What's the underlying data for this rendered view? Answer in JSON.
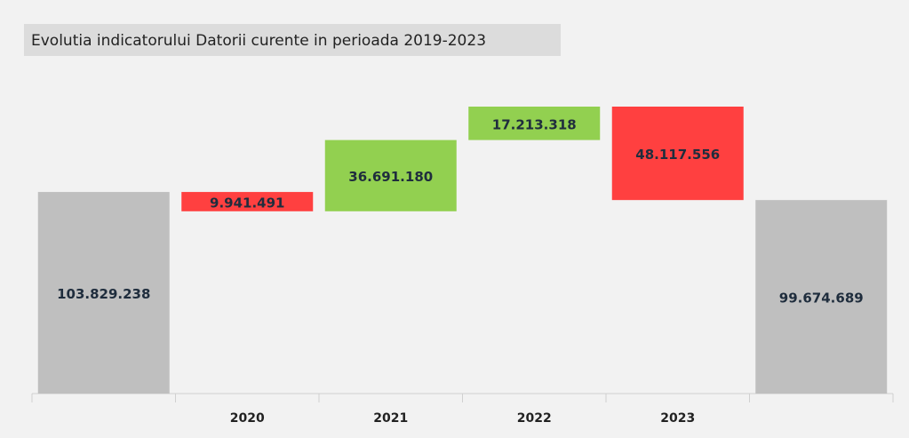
{
  "chart_data": {
    "type": "waterfall",
    "title": "Evolutia indicatorului Datorii curente in perioada 2019-2023",
    "categories": [
      null,
      "2020",
      "2021",
      "2022",
      "2023",
      null
    ],
    "measure": [
      "absolute",
      "relative",
      "relative",
      "relative",
      "relative",
      "total"
    ],
    "values": [
      103829238,
      -9941491,
      36691180,
      17213318,
      -48117556,
      99674689
    ],
    "value_labels": [
      "103.829.238",
      "9.941.491",
      "36.691.180",
      "17.213.318",
      "48.117.556",
      "99.674.689"
    ],
    "colors": {
      "total": "#bfbfbf",
      "increase": "#92d050",
      "decrease": "#ff4040"
    }
  }
}
